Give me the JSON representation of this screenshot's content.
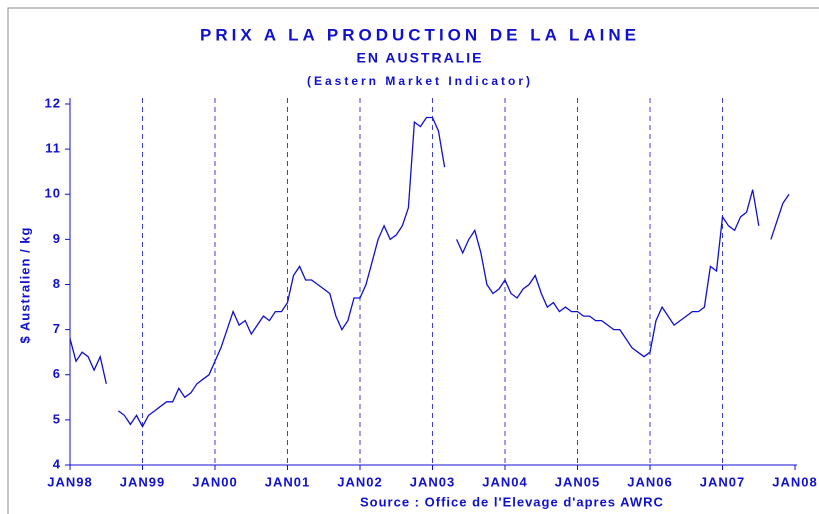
{
  "chart_data": {
    "type": "line",
    "title": "PRIX A LA PRODUCTION DE LA LAINE",
    "subtitle": "EN AUSTRALIE",
    "subtitle2": "(Eastern Market Indicator)",
    "y_label": "$ Australien / kg",
    "source": "Source : Office de l'Elevage d'apres AWRC",
    "grid": true,
    "xlim": [
      1998,
      2008
    ],
    "ylim": [
      4,
      12
    ],
    "yticks": [
      4,
      5,
      6,
      7,
      8,
      9,
      10,
      11,
      12
    ],
    "xticks": [
      {
        "value": 1998,
        "label": "JAN98"
      },
      {
        "value": 1999,
        "label": "JAN99"
      },
      {
        "value": 2000,
        "label": "JAN00"
      },
      {
        "value": 2001,
        "label": "JAN01"
      },
      {
        "value": 2002,
        "label": "JAN02"
      },
      {
        "value": 2003,
        "label": "JAN03"
      },
      {
        "value": 2004,
        "label": "JAN04"
      },
      {
        "value": 2005,
        "label": "JAN05"
      },
      {
        "value": 2006,
        "label": "JAN06"
      },
      {
        "value": 2007,
        "label": "JAN07"
      },
      {
        "value": 2008,
        "label": "JAN08"
      }
    ],
    "x": [
      1998.0,
      1998.083,
      1998.167,
      1998.25,
      1998.333,
      1998.417,
      1998.5,
      1998.583,
      1998.667,
      1998.75,
      1998.833,
      1998.917,
      1999.0,
      1999.083,
      1999.167,
      1999.25,
      1999.333,
      1999.417,
      1999.5,
      1999.583,
      1999.667,
      1999.75,
      1999.833,
      1999.917,
      2000.0,
      2000.083,
      2000.167,
      2000.25,
      2000.333,
      2000.417,
      2000.5,
      2000.583,
      2000.667,
      2000.75,
      2000.833,
      2000.917,
      2001.0,
      2001.083,
      2001.167,
      2001.25,
      2001.333,
      2001.417,
      2001.5,
      2001.583,
      2001.667,
      2001.75,
      2001.833,
      2001.917,
      2002.0,
      2002.083,
      2002.167,
      2002.25,
      2002.333,
      2002.417,
      2002.5,
      2002.583,
      2002.667,
      2002.75,
      2002.833,
      2002.917,
      2003.0,
      2003.083,
      2003.167,
      2003.25,
      2003.333,
      2003.417,
      2003.5,
      2003.583,
      2003.667,
      2003.75,
      2003.833,
      2003.917,
      2004.0,
      2004.083,
      2004.167,
      2004.25,
      2004.333,
      2004.417,
      2004.5,
      2004.583,
      2004.667,
      2004.75,
      2004.833,
      2004.917,
      2005.0,
      2005.083,
      2005.167,
      2005.25,
      2005.333,
      2005.417,
      2005.5,
      2005.583,
      2005.667,
      2005.75,
      2005.833,
      2005.917,
      2006.0,
      2006.083,
      2006.167,
      2006.25,
      2006.333,
      2006.417,
      2006.5,
      2006.583,
      2006.667,
      2006.75,
      2006.833,
      2006.917,
      2007.0,
      2007.083,
      2007.167,
      2007.25,
      2007.333,
      2007.417,
      2007.5,
      2007.583,
      2007.667,
      2007.75,
      2007.833,
      2007.917
    ],
    "series": [
      {
        "name": "Eastern Market Indicator",
        "color": "#1010d0",
        "values": [
          6.8,
          6.3,
          6.5,
          6.4,
          6.1,
          6.4,
          5.8,
          null,
          5.2,
          5.1,
          4.9,
          5.1,
          4.85,
          5.1,
          5.2,
          5.3,
          5.4,
          5.4,
          5.7,
          5.5,
          5.6,
          5.8,
          5.9,
          6.0,
          6.3,
          6.6,
          7.0,
          7.4,
          7.1,
          7.2,
          6.9,
          7.1,
          7.3,
          7.2,
          7.4,
          7.4,
          7.6,
          8.2,
          8.4,
          8.1,
          8.1,
          8.0,
          7.9,
          7.8,
          7.3,
          7.0,
          7.2,
          7.7,
          7.7,
          8.0,
          8.5,
          9.0,
          9.3,
          9.0,
          9.1,
          9.3,
          9.7,
          11.6,
          11.5,
          11.7,
          11.7,
          11.4,
          10.6,
          null,
          9.0,
          8.7,
          9.0,
          9.2,
          8.7,
          8.0,
          7.8,
          7.9,
          8.1,
          7.8,
          7.7,
          7.9,
          8.0,
          8.2,
          7.8,
          7.5,
          7.6,
          7.4,
          7.5,
          7.4,
          7.4,
          7.3,
          7.3,
          7.2,
          7.2,
          7.1,
          7.0,
          7.0,
          6.8,
          6.6,
          6.5,
          6.4,
          6.5,
          7.2,
          7.5,
          7.3,
          7.1,
          7.2,
          7.3,
          7.4,
          7.4,
          7.5,
          8.4,
          8.3,
          9.5,
          9.3,
          9.2,
          9.5,
          9.6,
          10.1,
          9.3,
          null,
          9.0,
          9.4,
          9.8,
          10.0
        ]
      }
    ]
  }
}
